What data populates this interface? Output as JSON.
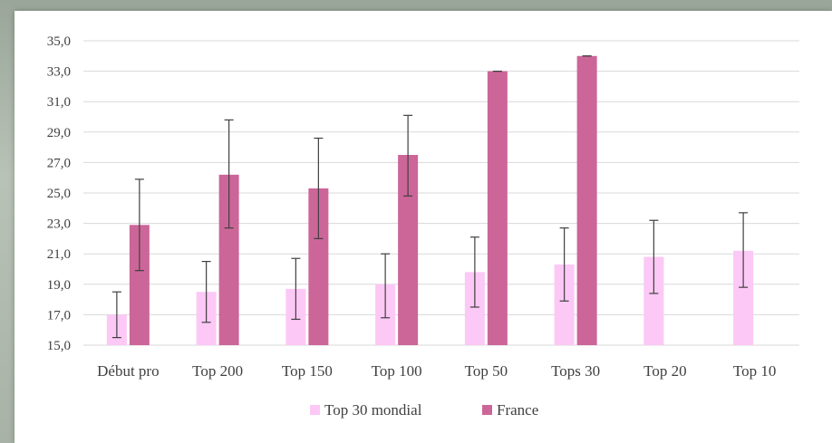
{
  "chart_data": {
    "type": "bar",
    "title": "",
    "xlabel": "",
    "ylabel": "",
    "ylim": [
      15,
      35
    ],
    "ytick_step": 2,
    "grid": true,
    "legend_position": "bottom",
    "categories": [
      "Début pro",
      "Top 200",
      "Top 150",
      "Top 100",
      "Top 50",
      "Tops 30",
      "Top 20",
      "Top 10"
    ],
    "series": [
      {
        "name": "Top 30 mondial",
        "color": "#FCC8F5",
        "values": [
          17.0,
          18.5,
          18.7,
          19.0,
          19.8,
          20.3,
          20.8,
          21.2
        ],
        "error_low": [
          15.5,
          16.5,
          16.7,
          16.8,
          17.5,
          17.9,
          18.4,
          18.8
        ],
        "error_high": [
          18.5,
          20.5,
          20.7,
          21.0,
          22.1,
          22.7,
          23.2,
          23.7
        ]
      },
      {
        "name": "France",
        "color": "#CC6699",
        "values": [
          22.9,
          26.2,
          25.3,
          27.5,
          33.0,
          34.0,
          null,
          null
        ],
        "error_low": [
          19.9,
          22.7,
          22.0,
          24.8,
          33.0,
          34.0,
          null,
          null
        ],
        "error_high": [
          25.9,
          29.8,
          28.6,
          30.1,
          33.0,
          34.0,
          null,
          null
        ]
      }
    ]
  }
}
